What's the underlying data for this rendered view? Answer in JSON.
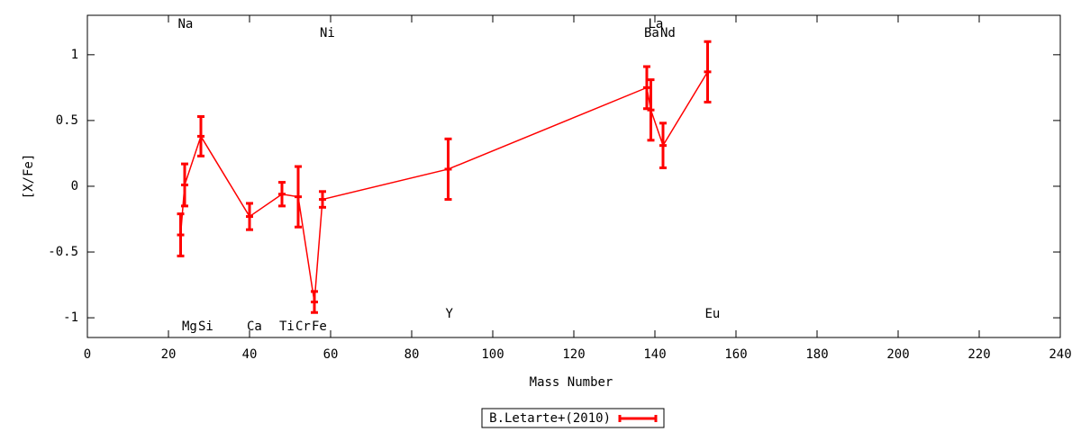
{
  "chart_data": {
    "type": "errorline",
    "xlabel": "Mass Number",
    "ylabel": "[X/Fe]",
    "xlim": [
      0,
      240
    ],
    "xticks": [
      0,
      20,
      40,
      60,
      80,
      100,
      120,
      140,
      160,
      180,
      200,
      220,
      240
    ],
    "ylim": [
      -1.15,
      1.3
    ],
    "yticks": [
      -1,
      -0.5,
      0,
      0.5,
      1
    ],
    "legend": "below",
    "series": [
      {
        "name": "B.Letarte+(2010)",
        "color": "#ff0000",
        "x": [
          23,
          24,
          28,
          40,
          48,
          52,
          56,
          58,
          89,
          138,
          139,
          142,
          153
        ],
        "values": [
          -0.37,
          0.01,
          0.38,
          -0.23,
          -0.06,
          -0.08,
          -0.88,
          -0.1,
          0.13,
          0.75,
          0.58,
          0.31,
          0.87
        ],
        "errors": [
          0.16,
          0.16,
          0.15,
          0.1,
          0.09,
          0.23,
          0.08,
          0.06,
          0.23,
          0.16,
          0.23,
          0.17,
          0.23
        ],
        "point_labels": [
          "Na",
          "Mg",
          "Si",
          "Ca",
          "Ti",
          "Cr",
          "Fe",
          "Ni",
          "Y",
          "Ba",
          "La",
          "Nd",
          "Eu"
        ]
      }
    ]
  }
}
